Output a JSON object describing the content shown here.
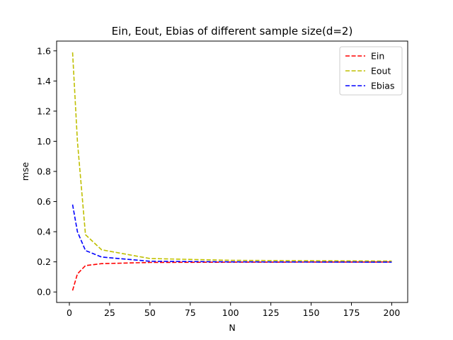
{
  "chart_data": {
    "type": "line",
    "title": "Ein, Eout, Ebias of different sample size(d=2)",
    "xlabel": "N",
    "ylabel": "mse",
    "xlim": [
      -7.9,
      209.9
    ],
    "ylim": [
      -0.0695,
      1.6648
    ],
    "xticks": [
      0,
      25,
      50,
      75,
      100,
      125,
      150,
      175,
      200
    ],
    "xtick_labels": [
      "0",
      "25",
      "50",
      "75",
      "100",
      "125",
      "150",
      "175",
      "200"
    ],
    "yticks": [
      0.0,
      0.2,
      0.4,
      0.6,
      0.8,
      1.0,
      1.2,
      1.4,
      1.6
    ],
    "ytick_labels": [
      "0.0",
      "0.2",
      "0.4",
      "0.6",
      "0.8",
      "1.0",
      "1.2",
      "1.4",
      "1.6"
    ],
    "grid": false,
    "legend_position": "top-right",
    "series": [
      {
        "name": "Ein",
        "color": "#ff0000",
        "x": [
          2,
          5,
          10,
          20,
          50,
          100,
          200
        ],
        "y": [
          0.01,
          0.12,
          0.175,
          0.188,
          0.196,
          0.198,
          0.199
        ]
      },
      {
        "name": "Eout",
        "color": "#bfbf00",
        "x": [
          2,
          5,
          10,
          20,
          50,
          100,
          200
        ],
        "y": [
          1.59,
          1.0,
          0.38,
          0.28,
          0.222,
          0.21,
          0.205
        ]
      },
      {
        "name": "Ebias",
        "color": "#0000ff",
        "x": [
          2,
          5,
          10,
          20,
          50,
          100,
          200
        ],
        "y": [
          0.58,
          0.4,
          0.275,
          0.232,
          0.204,
          0.2,
          0.198
        ]
      }
    ]
  }
}
